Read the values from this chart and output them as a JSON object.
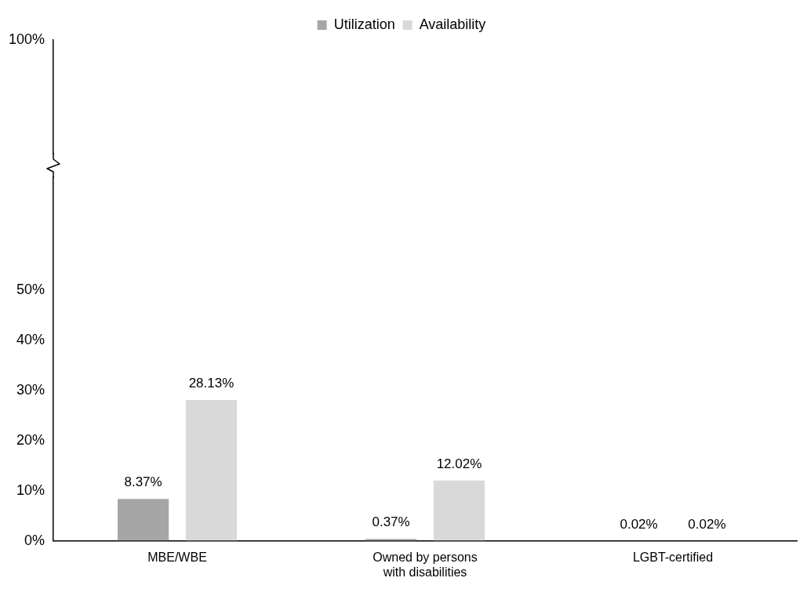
{
  "chart_data": {
    "type": "bar",
    "categories": [
      "MBE/WBE",
      "Owned by persons with disabilities",
      "LGBT-certified"
    ],
    "series": [
      {
        "name": "Utilization",
        "color": "#a6a6a6",
        "values": [
          8.37,
          0.37,
          0.02
        ],
        "value_labels": [
          "8.37%",
          "0.37%",
          "0.02%"
        ]
      },
      {
        "name": "Availability",
        "color": "#d9d9d9",
        "values": [
          28.13,
          12.02,
          0.02
        ],
        "value_labels": [
          "28.13%",
          "12.02%",
          "0.02%"
        ]
      }
    ],
    "ylim": [
      0,
      100
    ],
    "yticks": [
      {
        "value": 0,
        "label": "0%"
      },
      {
        "value": 10,
        "label": "10%"
      },
      {
        "value": 20,
        "label": "20%"
      },
      {
        "value": 30,
        "label": "30%"
      },
      {
        "value": 40,
        "label": "40%"
      },
      {
        "value": 50,
        "label": "50%"
      },
      {
        "value": 100,
        "label": "100%"
      }
    ],
    "grid": false,
    "legend": "top"
  }
}
